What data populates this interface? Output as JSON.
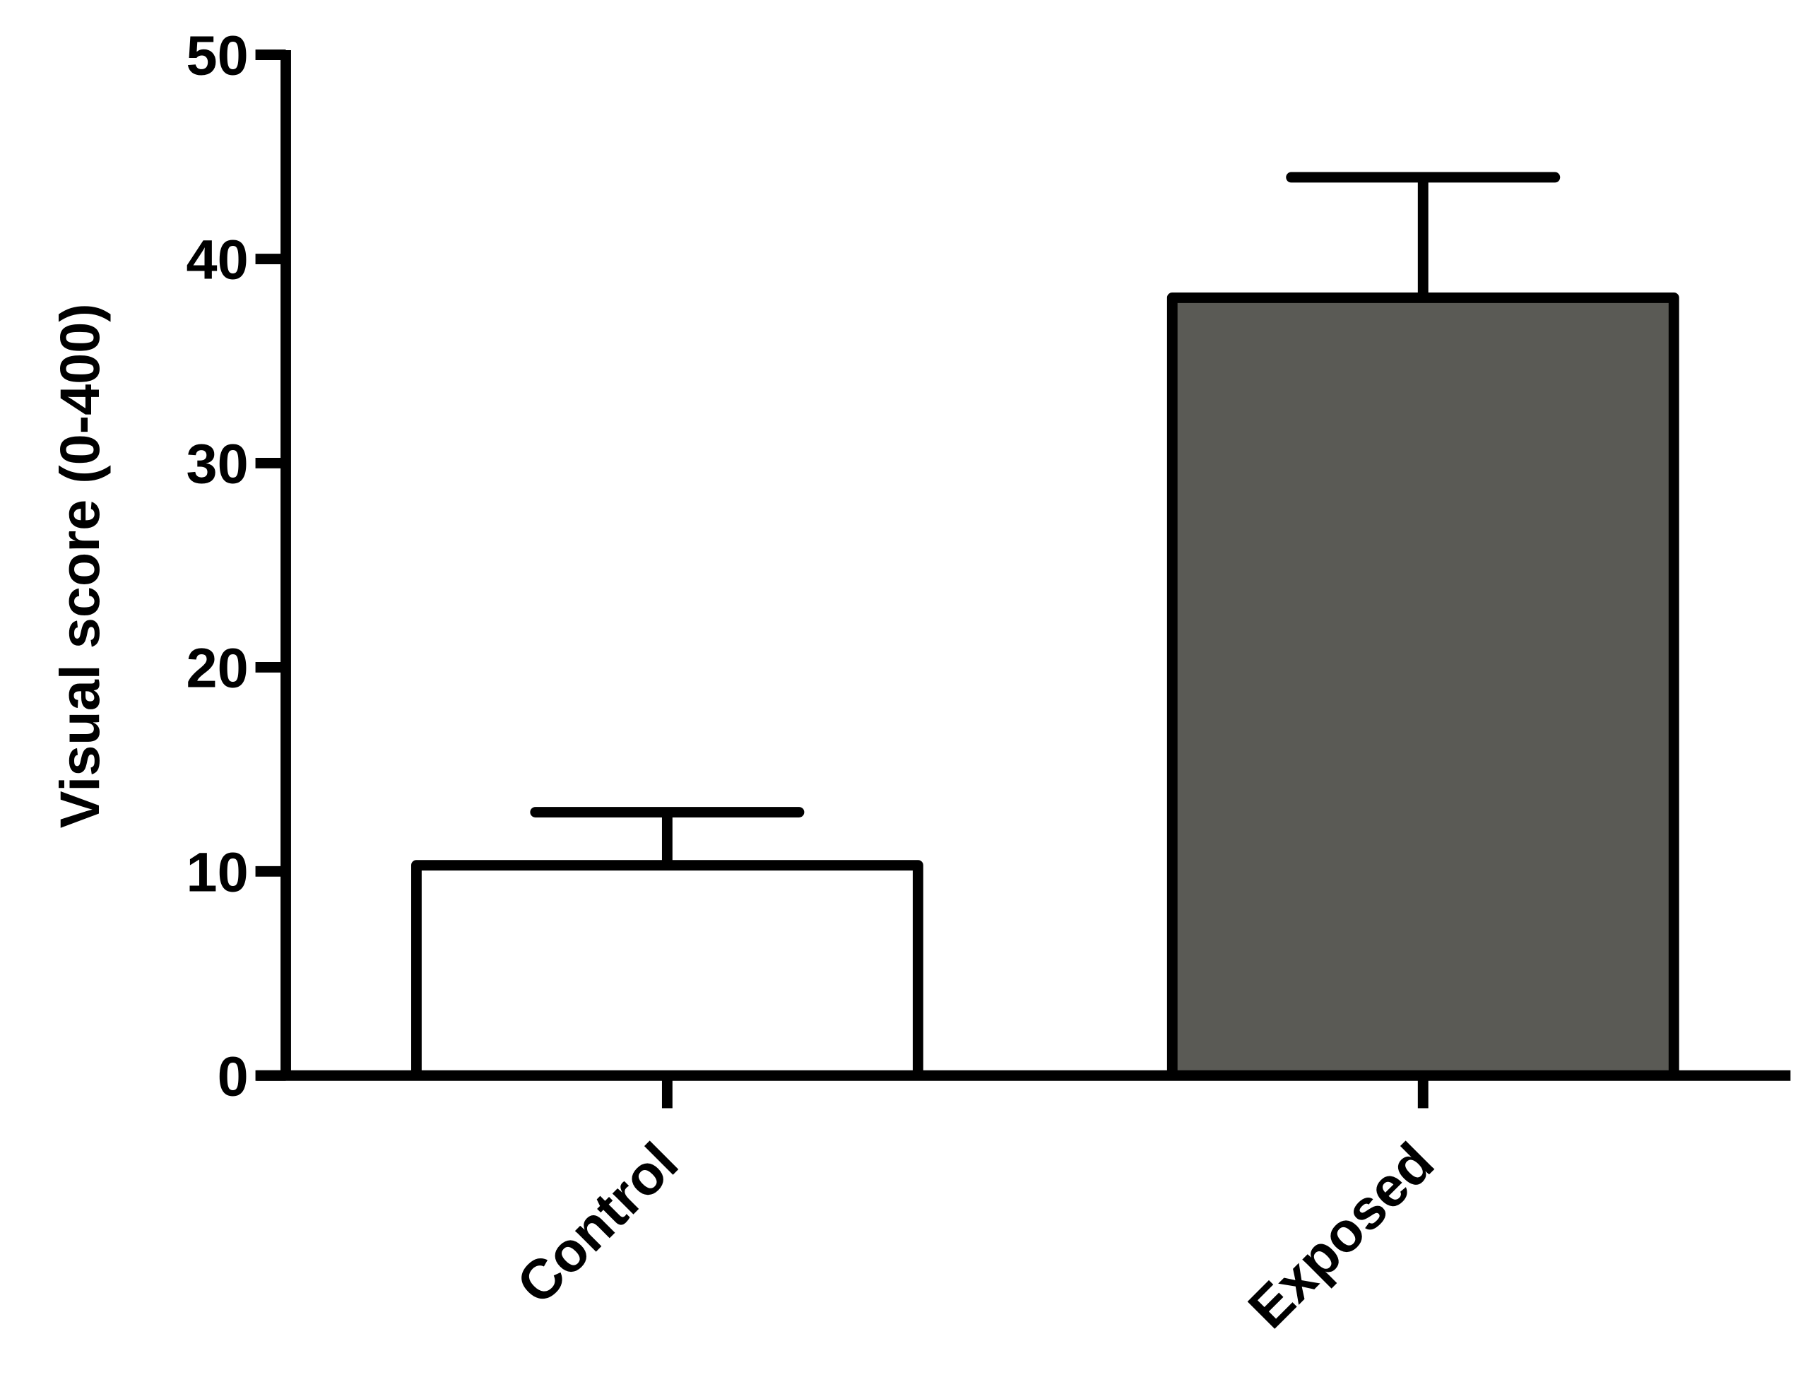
{
  "chart_data": {
    "type": "bar",
    "y_label": "Visual score (0-400)",
    "categories": [
      "Control",
      "Exposed"
    ],
    "values": [
      10.3,
      38.1
    ],
    "errors": [
      2.6,
      5.9
    ],
    "colors": [
      "#ffffff",
      "#5a5a55"
    ],
    "ylim": [
      0,
      50
    ],
    "yticks": [
      0,
      10,
      20,
      30,
      40,
      50
    ],
    "grid": false
  }
}
